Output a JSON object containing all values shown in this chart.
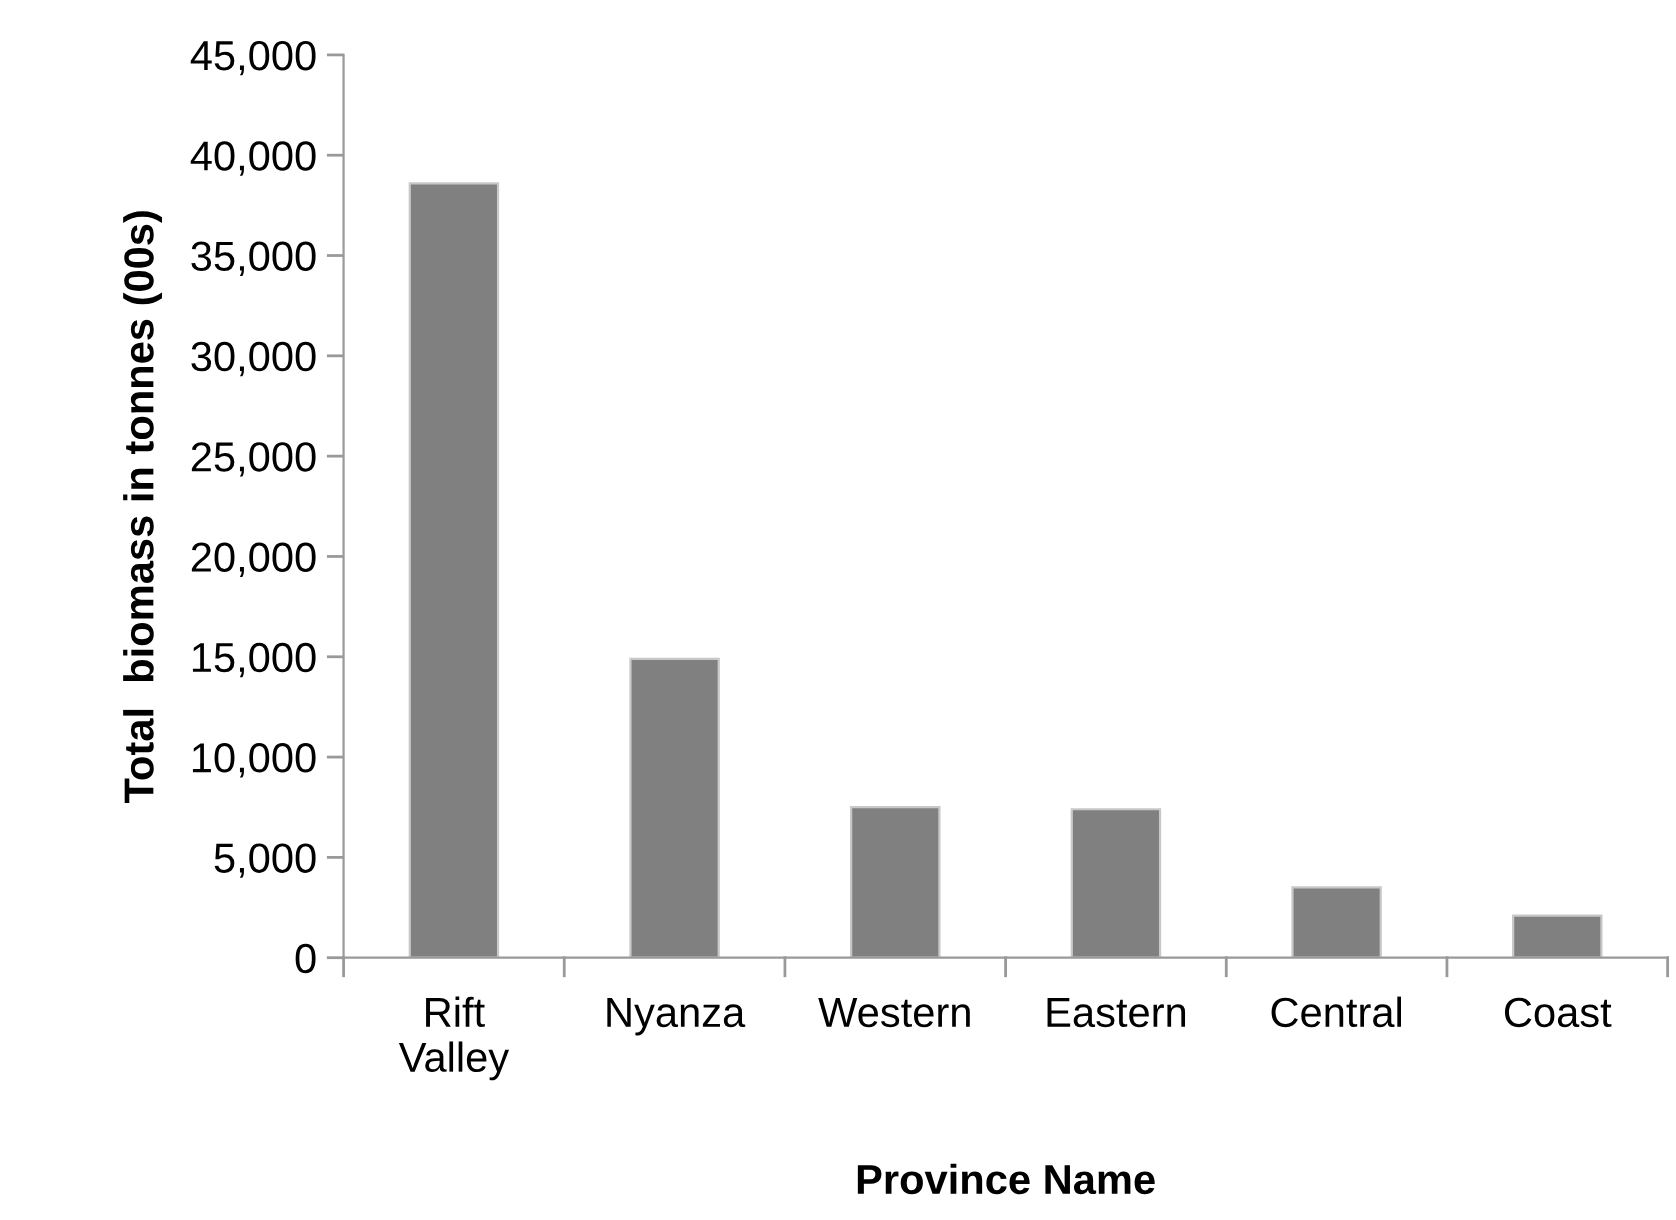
{
  "chart_data": {
    "type": "bar",
    "categories": [
      "Rift\nValley",
      "Nyanza",
      "Western",
      "Eastern",
      "Central",
      "Coast"
    ],
    "values": [
      38600,
      14900,
      7500,
      7400,
      3500,
      2100
    ],
    "color": "#808080",
    "xlabel": "Province Name",
    "ylabel": "Total  biomass in tonnes (00s)",
    "ylim": [
      0,
      45000
    ],
    "yticks": [
      {
        "value": 0,
        "label": "0"
      },
      {
        "value": 5000,
        "label": "5,000"
      },
      {
        "value": 10000,
        "label": "10,000"
      },
      {
        "value": 15000,
        "label": "15,000"
      },
      {
        "value": 20000,
        "label": "20,000"
      },
      {
        "value": 25000,
        "label": "25,000"
      },
      {
        "value": 30000,
        "label": "30,000"
      },
      {
        "value": 35000,
        "label": "35,000"
      },
      {
        "value": 40000,
        "label": "40,000"
      },
      {
        "value": 45000,
        "label": "45,000"
      }
    ],
    "grid": false
  }
}
